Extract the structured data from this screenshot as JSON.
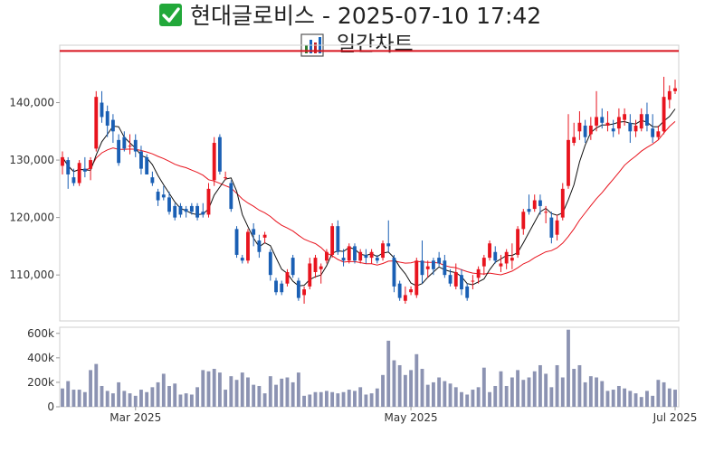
{
  "title": {
    "check_icon": "check-box-icon",
    "text": "현대글로비스 - 2025-07-10 17:42"
  },
  "subtitle": {
    "chart_icon": "bar-chart-icon",
    "text": "일간차트"
  },
  "colors": {
    "up": "#e8141e",
    "down": "#1a5fb4",
    "volume": "#8c93b2",
    "ma_short": "#111111",
    "ma_long": "#e8141e",
    "reference_line": "#d8141e",
    "check": "#22a83a"
  },
  "chart_data": {
    "type": "candlestick",
    "price_axis": {
      "ticks": [
        110000,
        120000,
        130000,
        140000
      ],
      "tick_labels": [
        "110,000",
        "120,000",
        "130,000",
        "140,000"
      ],
      "ylim": [
        102000,
        150000
      ]
    },
    "volume_axis": {
      "ticks": [
        0,
        200000,
        400000,
        600000
      ],
      "tick_labels": [
        "0",
        "200k",
        "400k",
        "600k"
      ],
      "ylim": [
        0,
        650000
      ]
    },
    "x_axis": {
      "tick_labels": [
        "Mar 2025",
        "May 2025",
        "Jul 2025"
      ],
      "tick_indices": [
        13,
        62,
        109
      ]
    },
    "reference_line": 149000,
    "candles": [
      [
        129000,
        131500,
        127500,
        130500,
        150000
      ],
      [
        130000,
        130500,
        125000,
        127500,
        210000
      ],
      [
        127000,
        128500,
        125500,
        126000,
        140000
      ],
      [
        126000,
        130000,
        125500,
        129500,
        140000
      ],
      [
        128500,
        130500,
        127000,
        128000,
        120000
      ],
      [
        128500,
        130500,
        126500,
        130000,
        300000
      ],
      [
        132000,
        142000,
        131500,
        141000,
        350000
      ],
      [
        140000,
        142000,
        136500,
        137500,
        170000
      ],
      [
        138500,
        139500,
        134000,
        136000,
        130000
      ],
      [
        137000,
        138000,
        133000,
        135000,
        110000
      ],
      [
        133500,
        134500,
        129000,
        129500,
        200000
      ],
      [
        134000,
        135000,
        131500,
        132000,
        130000
      ],
      [
        132500,
        134500,
        131000,
        132500,
        110000
      ],
      [
        133500,
        134500,
        130500,
        131500,
        90000
      ],
      [
        131500,
        132500,
        127500,
        128500,
        140000
      ],
      [
        130500,
        131000,
        127500,
        127500,
        120000
      ],
      [
        127000,
        128000,
        125500,
        126000,
        160000
      ],
      [
        124500,
        125000,
        122000,
        123000,
        200000
      ],
      [
        124000,
        125500,
        123000,
        123500,
        270000
      ],
      [
        123500,
        124500,
        120500,
        121000,
        170000
      ],
      [
        122000,
        122500,
        119500,
        120000,
        190000
      ],
      [
        122000,
        122500,
        120000,
        120500,
        100000
      ],
      [
        121500,
        122000,
        120000,
        121000,
        110000
      ],
      [
        122000,
        122500,
        120500,
        121000,
        100000
      ],
      [
        122000,
        122500,
        119500,
        120000,
        160000
      ],
      [
        121000,
        122500,
        120000,
        120500,
        300000
      ],
      [
        120500,
        126000,
        120000,
        125000,
        290000
      ],
      [
        126500,
        134000,
        125500,
        133000,
        310000
      ],
      [
        134000,
        134500,
        127500,
        128000,
        280000
      ],
      [
        127000,
        128000,
        126500,
        127000,
        140000
      ],
      [
        126000,
        126500,
        121000,
        121500,
        250000
      ],
      [
        118000,
        118500,
        113000,
        113500,
        220000
      ],
      [
        113000,
        113500,
        112000,
        112500,
        280000
      ],
      [
        112500,
        118000,
        112000,
        117500,
        240000
      ],
      [
        118000,
        119000,
        115000,
        117000,
        180000
      ],
      [
        116000,
        117000,
        113000,
        114000,
        170000
      ],
      [
        116500,
        117500,
        115500,
        117000,
        110000
      ],
      [
        114000,
        114500,
        109000,
        110000,
        250000
      ],
      [
        109000,
        109500,
        106500,
        107000,
        180000
      ],
      [
        108500,
        109000,
        106500,
        107000,
        230000
      ],
      [
        108500,
        111000,
        108000,
        110500,
        240000
      ],
      [
        113000,
        113500,
        109500,
        110000,
        200000
      ],
      [
        109000,
        109500,
        105500,
        106000,
        280000
      ],
      [
        106500,
        108000,
        105000,
        107500,
        90000
      ],
      [
        108000,
        113000,
        107500,
        112000,
        100000
      ],
      [
        110500,
        113500,
        109500,
        113000,
        120000
      ],
      [
        111000,
        112000,
        108500,
        111500,
        120000
      ],
      [
        112500,
        114500,
        112000,
        114000,
        130000
      ],
      [
        113500,
        119000,
        113000,
        118500,
        120000
      ],
      [
        118500,
        119500,
        113500,
        114000,
        110000
      ],
      [
        113000,
        114500,
        111500,
        112500,
        120000
      ],
      [
        112500,
        115500,
        112000,
        115000,
        140000
      ],
      [
        115000,
        115500,
        112000,
        112500,
        130000
      ],
      [
        112500,
        114500,
        112000,
        114000,
        160000
      ],
      [
        113500,
        114500,
        112000,
        113000,
        100000
      ],
      [
        113000,
        114500,
        112000,
        114000,
        110000
      ],
      [
        113000,
        113500,
        112000,
        112500,
        150000
      ],
      [
        113000,
        116000,
        112500,
        115500,
        260000
      ],
      [
        115500,
        119500,
        114000,
        115000,
        540000
      ],
      [
        113000,
        113500,
        107000,
        108000,
        380000
      ],
      [
        108500,
        109000,
        105500,
        106000,
        340000
      ],
      [
        105500,
        108000,
        105000,
        106500,
        260000
      ],
      [
        107000,
        108000,
        106500,
        107500,
        300000
      ],
      [
        106500,
        113000,
        106000,
        112500,
        430000
      ],
      [
        112500,
        116000,
        108500,
        110000,
        310000
      ],
      [
        111000,
        112500,
        109500,
        111500,
        180000
      ],
      [
        112500,
        113000,
        110000,
        111000,
        200000
      ],
      [
        113000,
        114000,
        111500,
        112000,
        240000
      ],
      [
        112500,
        113500,
        109500,
        110000,
        210000
      ],
      [
        110000,
        111000,
        108000,
        108500,
        190000
      ],
      [
        108000,
        112000,
        107500,
        110500,
        160000
      ],
      [
        110000,
        111000,
        106500,
        107500,
        120000
      ],
      [
        108000,
        108500,
        105500,
        106000,
        100000
      ],
      [
        109000,
        110000,
        107500,
        109000,
        140000
      ],
      [
        109500,
        111500,
        108500,
        111000,
        160000
      ],
      [
        111500,
        113500,
        110000,
        113000,
        320000
      ],
      [
        113000,
        116000,
        112500,
        115500,
        120000
      ],
      [
        114000,
        115000,
        112000,
        112500,
        170000
      ],
      [
        111500,
        113500,
        110500,
        112000,
        290000
      ],
      [
        112000,
        114500,
        111000,
        114000,
        170000
      ],
      [
        112500,
        115500,
        111000,
        113000,
        240000
      ],
      [
        113500,
        118500,
        113000,
        118000,
        300000
      ],
      [
        118000,
        121500,
        117000,
        121000,
        220000
      ],
      [
        121500,
        124000,
        120500,
        121000,
        240000
      ],
      [
        121500,
        124000,
        121000,
        123000,
        290000
      ],
      [
        123000,
        124000,
        120500,
        122000,
        340000
      ],
      [
        121000,
        122000,
        119000,
        121000,
        270000
      ],
      [
        120000,
        121000,
        115500,
        116500,
        160000
      ],
      [
        117000,
        120500,
        116000,
        119500,
        340000
      ],
      [
        120000,
        126000,
        119500,
        125000,
        240000
      ],
      [
        125500,
        138000,
        125000,
        133500,
        630000
      ],
      [
        133000,
        136500,
        132500,
        134000,
        310000
      ],
      [
        135000,
        138500,
        133500,
        136500,
        340000
      ],
      [
        136000,
        137000,
        133000,
        134000,
        200000
      ],
      [
        134500,
        137500,
        133500,
        136000,
        250000
      ],
      [
        136000,
        142000,
        135000,
        137500,
        240000
      ],
      [
        137500,
        139000,
        135500,
        136500,
        210000
      ],
      [
        136000,
        138500,
        135000,
        136500,
        130000
      ],
      [
        135500,
        137000,
        134000,
        135000,
        140000
      ],
      [
        135500,
        139000,
        134500,
        137500,
        170000
      ],
      [
        137000,
        139000,
        136000,
        138000,
        150000
      ],
      [
        136500,
        138000,
        133000,
        135000,
        130000
      ],
      [
        135000,
        137000,
        134000,
        136000,
        110000
      ],
      [
        135500,
        139000,
        135000,
        138000,
        80000
      ],
      [
        138000,
        140000,
        135000,
        136000,
        130000
      ],
      [
        135500,
        138000,
        133000,
        134000,
        90000
      ],
      [
        134000,
        136000,
        133500,
        135000,
        220000
      ],
      [
        135000,
        144500,
        134500,
        141000,
        200000
      ],
      [
        140500,
        143000,
        139000,
        142000,
        150000
      ],
      [
        142000,
        144000,
        141500,
        142500,
        140000
      ]
    ]
  }
}
